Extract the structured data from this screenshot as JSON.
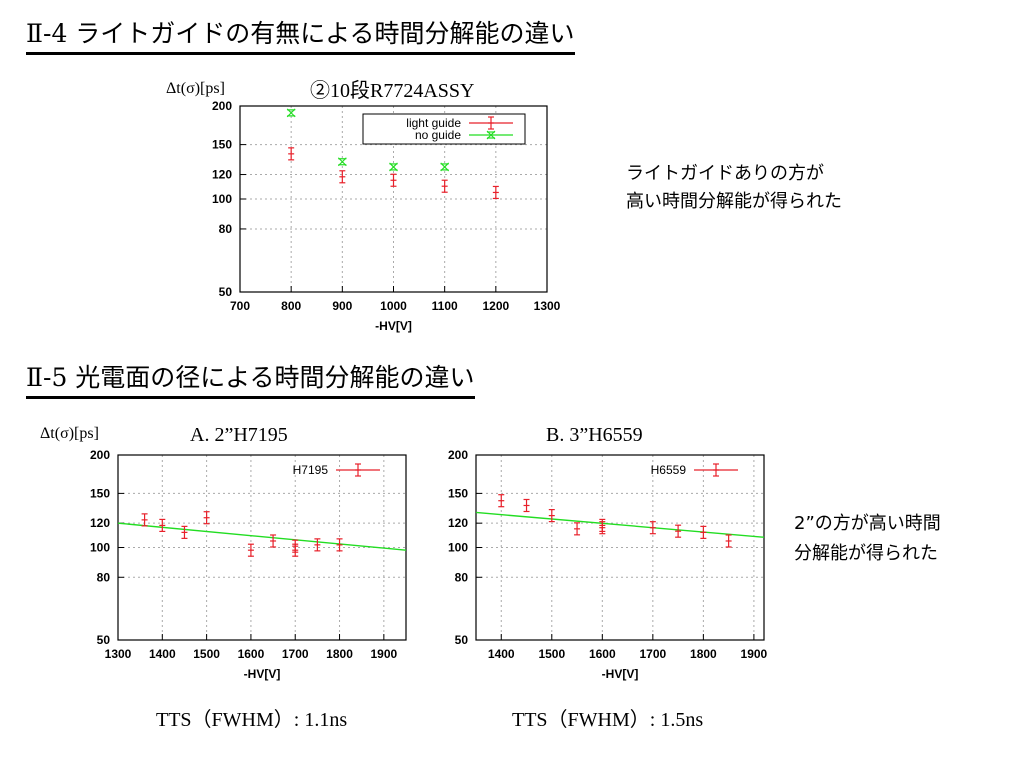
{
  "section4": {
    "heading": "Ⅱ-4  ライトガイドの有無による時間分解能の違い",
    "ylabel": "Δt(σ)[ps]",
    "chart_title": "②10段R7724ASSY",
    "note_line1": "ライトガイドありの方が",
    "note_line2": "高い時間分解能が得られた"
  },
  "section5": {
    "heading": "Ⅱ-5  光電面の径による時間分解能の違い",
    "ylabel": "Δt(σ)[ps]",
    "chart_a_title": "A. 2”H7195",
    "chart_b_title": "B. 3”H6559",
    "tts_a": "TTS（FWHM）: 1.1ns",
    "tts_b": "TTS（FWHM）: 1.5ns",
    "note_line1": "2”の方が高い時間",
    "note_line2": "分解能が得られた"
  },
  "colors": {
    "red": "#e8202a",
    "green": "#22dd22",
    "grid": "#aaaaaa"
  },
  "chart_data": [
    {
      "id": "c1",
      "type": "scatter",
      "xlabel": "-HV[V]",
      "xlim": [
        700,
        1300
      ],
      "ylim": [
        50,
        200
      ],
      "log_y": true,
      "xticks": [
        700,
        800,
        900,
        1000,
        1100,
        1200,
        1300
      ],
      "yticks": [
        50,
        80,
        100,
        120,
        150,
        200
      ],
      "grid": true,
      "legend_position": "top-right",
      "series": [
        {
          "name": "light guide",
          "color": "#e8202a",
          "marker": "plus",
          "x": [
            800,
            900,
            1000,
            1100,
            1200
          ],
          "y": [
            140,
            118,
            115,
            110,
            105
          ]
        },
        {
          "name": "no guide",
          "color": "#22dd22",
          "marker": "cross",
          "x": [
            800,
            900,
            1000,
            1100
          ],
          "y": [
            190,
            132,
            127,
            127
          ]
        }
      ]
    },
    {
      "id": "c2",
      "type": "scatter",
      "xlabel": "-HV[V]",
      "xlim": [
        1300,
        1950
      ],
      "ylim": [
        50,
        200
      ],
      "log_y": true,
      "xticks": [
        1300,
        1400,
        1500,
        1600,
        1700,
        1800,
        1900
      ],
      "yticks": [
        50,
        80,
        100,
        120,
        150,
        200
      ],
      "grid": true,
      "legend_position": "top-right",
      "series": [
        {
          "name": "H7195",
          "color": "#e8202a",
          "marker": "errorbar",
          "x": [
            1360,
            1400,
            1450,
            1500,
            1600,
            1650,
            1700,
            1700,
            1750,
            1800
          ],
          "y": [
            123,
            118,
            112,
            125,
            98,
            105,
            101,
            98,
            102,
            102
          ]
        }
      ],
      "fit": {
        "color": "#22dd22",
        "x": [
          1300,
          1950
        ],
        "y": [
          120,
          98
        ]
      }
    },
    {
      "id": "c3",
      "type": "scatter",
      "xlabel": "-HV[V]",
      "xlim": [
        1350,
        1920
      ],
      "ylim": [
        50,
        200
      ],
      "log_y": true,
      "xticks": [
        1400,
        1500,
        1600,
        1700,
        1800,
        1900
      ],
      "yticks": [
        50,
        80,
        100,
        120,
        150,
        200
      ],
      "grid": true,
      "legend_position": "top-right",
      "series": [
        {
          "name": "H6559",
          "color": "#e8202a",
          "marker": "errorbar",
          "x": [
            1400,
            1450,
            1500,
            1550,
            1600,
            1600,
            1700,
            1750,
            1800,
            1850
          ],
          "y": [
            142,
            137,
            127,
            115,
            118,
            116,
            116,
            113,
            112,
            105
          ]
        }
      ],
      "fit": {
        "color": "#22dd22",
        "x": [
          1350,
          1920
        ],
        "y": [
          130,
          108
        ]
      }
    }
  ]
}
